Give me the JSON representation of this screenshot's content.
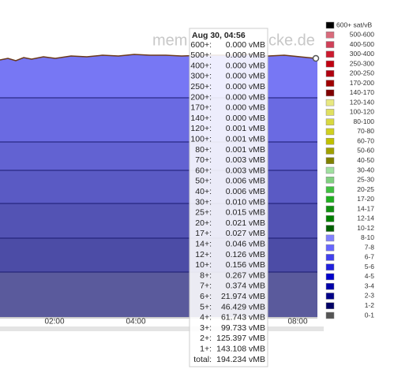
{
  "watermark": {
    "left": "mem",
    "right": "cke.de"
  },
  "x_ticks": [
    "02:00",
    "04:00",
    "08:00"
  ],
  "tooltip": {
    "date": "Aug 30, 04:56",
    "rows": [
      {
        "label": "600+:",
        "value": "0.000 vMB"
      },
      {
        "label": "500+:",
        "value": "0.000 vMB"
      },
      {
        "label": "400+:",
        "value": "0.000 vMB"
      },
      {
        "label": "300+:",
        "value": "0.000 vMB"
      },
      {
        "label": "250+:",
        "value": "0.000 vMB"
      },
      {
        "label": "200+:",
        "value": "0.000 vMB"
      },
      {
        "label": "170+:",
        "value": "0.000 vMB"
      },
      {
        "label": "140+:",
        "value": "0.000 vMB"
      },
      {
        "label": "120+:",
        "value": "0.001 vMB"
      },
      {
        "label": "100+:",
        "value": "0.001 vMB"
      },
      {
        "label": "80+:",
        "value": "0.001 vMB"
      },
      {
        "label": "70+:",
        "value": "0.003 vMB"
      },
      {
        "label": "60+:",
        "value": "0.003 vMB"
      },
      {
        "label": "50+:",
        "value": "0.006 vMB"
      },
      {
        "label": "40+:",
        "value": "0.006 vMB"
      },
      {
        "label": "30+:",
        "value": "0.010 vMB"
      },
      {
        "label": "25+:",
        "value": "0.015 vMB"
      },
      {
        "label": "20+:",
        "value": "0.021 vMB"
      },
      {
        "label": "17+:",
        "value": "0.027 vMB"
      },
      {
        "label": "14+:",
        "value": "0.046 vMB"
      },
      {
        "label": "12+:",
        "value": "0.126 vMB"
      },
      {
        "label": "10+:",
        "value": "0.156 vMB"
      },
      {
        "label": "8+:",
        "value": "0.267 vMB"
      },
      {
        "label": "7+:",
        "value": "0.374 vMB"
      },
      {
        "label": "6+:",
        "value": "21.974 vMB"
      },
      {
        "label": "5+:",
        "value": "46.429 vMB"
      },
      {
        "label": "4+:",
        "value": "61.743 vMB"
      },
      {
        "label": "3+:",
        "value": "99.733 vMB"
      },
      {
        "label": "2+:",
        "value": "125.397 vMB"
      },
      {
        "label": "1+:",
        "value": "143.108 vMB"
      },
      {
        "label": "total:",
        "value": "194.234 vMB"
      }
    ]
  },
  "legend": [
    {
      "label": "600+ sat/vB",
      "color": "#000000"
    },
    {
      "label": "500-600",
      "color": "#d96b7b"
    },
    {
      "label": "400-500",
      "color": "#d04058"
    },
    {
      "label": "300-400",
      "color": "#cc1a2e"
    },
    {
      "label": "250-300",
      "color": "#c00010"
    },
    {
      "label": "200-250",
      "color": "#b00010"
    },
    {
      "label": "170-200",
      "color": "#a00000"
    },
    {
      "label": "140-170",
      "color": "#800000"
    },
    {
      "label": "120-140",
      "color": "#e8e880"
    },
    {
      "label": "100-120",
      "color": "#e0e060"
    },
    {
      "label": "80-100",
      "color": "#d8d840"
    },
    {
      "label": "70-80",
      "color": "#d0d020"
    },
    {
      "label": "60-70",
      "color": "#c0c000"
    },
    {
      "label": "50-60",
      "color": "#a0a000"
    },
    {
      "label": "40-50",
      "color": "#808000"
    },
    {
      "label": "30-40",
      "color": "#a0e0a0"
    },
    {
      "label": "25-30",
      "color": "#80d080"
    },
    {
      "label": "20-25",
      "color": "#40c040"
    },
    {
      "label": "17-20",
      "color": "#20b020"
    },
    {
      "label": "14-17",
      "color": "#109010"
    },
    {
      "label": "12-14",
      "color": "#008000"
    },
    {
      "label": "10-12",
      "color": "#006000"
    },
    {
      "label": "8-10",
      "color": "#8080ff"
    },
    {
      "label": "7-8",
      "color": "#6666ff"
    },
    {
      "label": "6-7",
      "color": "#4040ee"
    },
    {
      "label": "5-6",
      "color": "#2020dd"
    },
    {
      "label": "4-5",
      "color": "#0000cc"
    },
    {
      "label": "3-4",
      "color": "#0000aa"
    },
    {
      "label": "2-3",
      "color": "#000088"
    },
    {
      "label": "1-2",
      "color": "#000066"
    },
    {
      "label": "0-1",
      "color": "#555555"
    }
  ]
}
